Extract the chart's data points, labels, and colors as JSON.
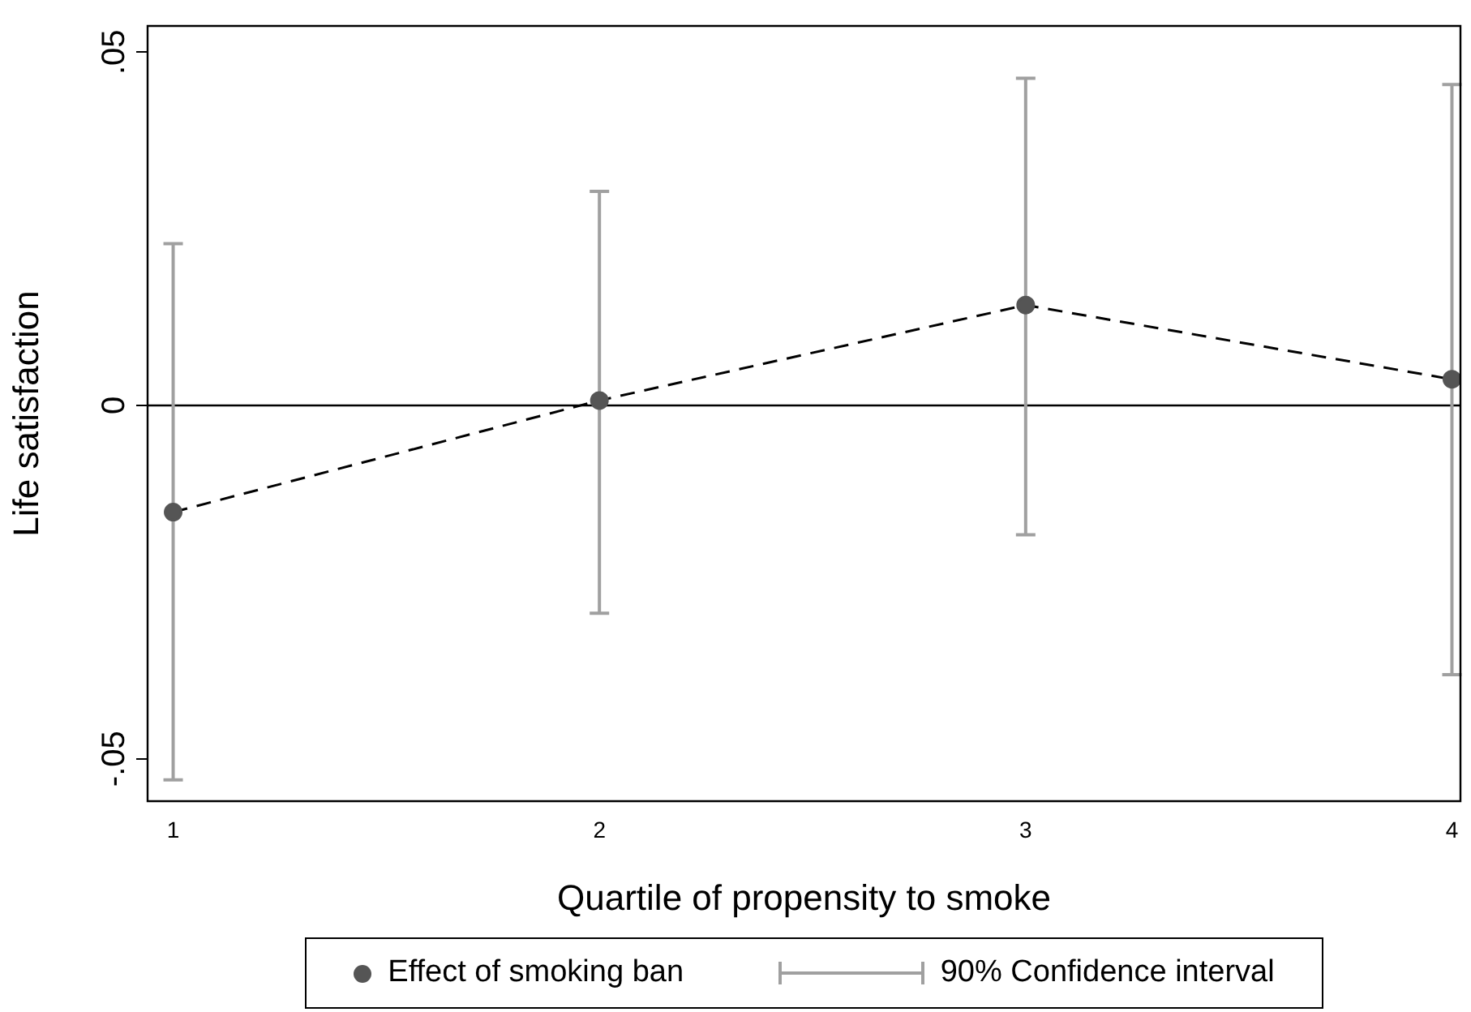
{
  "chart_data": {
    "type": "line",
    "xlabel": "Quartile of propensity to smoke",
    "ylabel": "Life satisfaction",
    "x": [
      1,
      2,
      3,
      4
    ],
    "xlim": [
      0.94,
      4.02
    ],
    "xticks": [
      1,
      2,
      3,
      4
    ],
    "ylim": [
      -0.056,
      0.0537
    ],
    "yticks": [
      {
        "value": -0.05,
        "label": "-.05"
      },
      0,
      {
        "value": 0.05,
        "label": ".05"
      }
    ],
    "series": [
      {
        "name": "Effect of smoking ban",
        "color": "#555555",
        "values": [
          -0.0151,
          0.0007,
          0.0142,
          0.0037
        ],
        "errors": [
          [
            -0.053,
            0.0229
          ],
          [
            -0.0294,
            0.0303
          ],
          [
            -0.0183,
            0.0463
          ],
          [
            -0.0381,
            0.0454
          ]
        ]
      }
    ],
    "marker": "circle",
    "line_style": "dashed",
    "grid": false,
    "legend": "bottom",
    "ref_lines": [
      {
        "axis": "y",
        "value": 0,
        "color": "#000000"
      }
    ],
    "annotations": [
      "90% Confidence interval"
    ]
  }
}
